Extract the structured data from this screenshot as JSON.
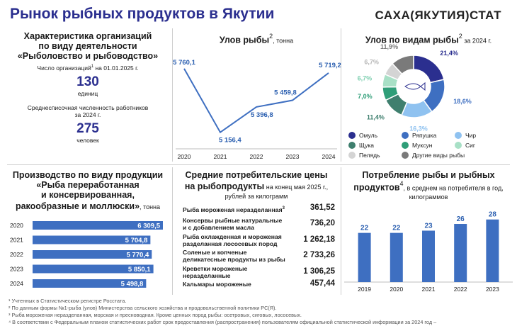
{
  "header": {
    "title": "Рынок рыбных продуктов в Якутии",
    "brand": "САХА(ЯКУТИЯ)СТАТ"
  },
  "org_panel": {
    "title_line1": "Характеристика организаций",
    "title_line2": "по виду деятельности",
    "title_line3": "«Рыболовство и рыбоводство»",
    "count_label_a": "Число организаций",
    "count_sup": "1",
    "count_label_b": " на 01.01.2025 г.",
    "count_value": "130",
    "count_unit": "единиц",
    "workers_label1": "Среднесписочная численность работников",
    "workers_label2": "за 2024 г.",
    "workers_value": "275",
    "workers_unit": "человек"
  },
  "catch_panel": {
    "title": "Улов рыбы",
    "title_sup": "2",
    "unit": ", тонна"
  },
  "species_panel": {
    "title": "Улов по видам рыбы",
    "title_sup": "2",
    "subtitle": " за 2024 г."
  },
  "production_panel": {
    "title_line1": "Производство по виду продукции",
    "title_line2": "«Рыба переработанная",
    "title_line3": "и консервированная,",
    "title_line4": "ракообразные и моллюски»",
    "unit": ", тонна"
  },
  "prices_panel": {
    "title_line1": "Средние потребительские цены",
    "title_line2": "на рыбопродукты",
    "subtitle_a": " на конец мая 2025 г.,",
    "subtitle_b": "рублей за килограмм"
  },
  "consumption_panel": {
    "title_line1": "Потребление рыбы и рыбных",
    "title_line2": "продуктов",
    "title_sup": "4",
    "subtitle_a": ", в среднем на потребителя в год,",
    "subtitle_b": "килограммов"
  },
  "chart_data": [
    {
      "type": "line",
      "x": [
        "2020",
        "2021",
        "2022",
        "2023",
        "2024"
      ],
      "values": [
        5760.1,
        5156.4,
        5396.8,
        5459.8,
        5719.2
      ],
      "labels": [
        "5 760,1",
        "5 156,4",
        "5 396,8",
        "5 459,8",
        "5 719,2"
      ],
      "color": "#3e6fc1"
    },
    {
      "type": "pie",
      "categories": [
        "Омуль",
        "Ряпушка",
        "Чир",
        "Щука",
        "Муксун",
        "Сиг",
        "Пелядь",
        "Другие виды рыбы"
      ],
      "values": [
        21.4,
        18.6,
        16.3,
        11.4,
        7.0,
        6.7,
        6.7,
        11.9
      ],
      "labels": [
        "21,4%",
        "18,6%",
        "16,3%",
        "11,4%",
        "7,0%",
        "6,7%",
        "6,7%",
        "11,9%"
      ],
      "colors": [
        "#2b2f8f",
        "#3e6fc1",
        "#8fc2f0",
        "#3f7f6e",
        "#2f9e78",
        "#a8e0c6",
        "#d4d4d4",
        "#7a7a7a"
      ],
      "label_colors": [
        "#2b2f8f",
        "#3e6fc1",
        "#8fc2f0",
        "#3f7f6e",
        "#2f9e78",
        "#7dcfb0",
        "#b5b5b5",
        "#7a7a7a"
      ]
    },
    {
      "type": "bar",
      "orientation": "horizontal",
      "categories": [
        "2020",
        "2021",
        "2022",
        "2023",
        "2024"
      ],
      "values": [
        6309.5,
        5704.8,
        5770.4,
        5850.1,
        5498.8
      ],
      "labels": [
        "6 309,5",
        "5 704,8",
        "5 770,4",
        "5 850,1",
        "5 498,8"
      ],
      "color": "#3e6fc1"
    },
    {
      "type": "table",
      "rows": [
        {
          "name_lines": [
            "Рыба мороженая неразделанная"
          ],
          "sup": "3",
          "value": "361,52"
        },
        {
          "name_lines": [
            "Консервы рыбные натуральные",
            "и с добавлением масла"
          ],
          "sup": "",
          "value": "736,20"
        },
        {
          "name_lines": [
            "Рыба охлажденная и мороженая",
            "разделанная лососевых пород"
          ],
          "sup": "",
          "value": "1 262,18"
        },
        {
          "name_lines": [
            "Соленые и копченые",
            "деликатесные продукты из рыбы"
          ],
          "sup": "",
          "value": "2 733,26"
        },
        {
          "name_lines": [
            "Креветки мороженые",
            "неразделанные"
          ],
          "sup": "",
          "value": "1 306,25"
        },
        {
          "name_lines": [
            "Кальмары мороженые"
          ],
          "sup": "",
          "value": "457,44"
        }
      ]
    },
    {
      "type": "bar",
      "categories": [
        "2019",
        "2020",
        "2021",
        "2022",
        "2023"
      ],
      "values": [
        22,
        22,
        23,
        26,
        28
      ],
      "labels": [
        "22",
        "22",
        "23",
        "26",
        "28"
      ],
      "color": "#3e6fc1"
    }
  ],
  "footnotes": [
    "¹ Учтенных в Статистическом регистре Росстата.",
    "² По данным формы №1-рыба (улов) Министерства сельского хозяйства и продовольственной политики РС(Я).",
    "³ Рыба мороженая неразделанная, морская и пресноводная. Кроме ценных пород рыбы: осетровых, сиговых, лососевых.",
    "⁴ В соответствии с Федеральным планом статистических работ срок предоставления (распространения) пользователям официальной статистической информации за 2024 год –"
  ]
}
